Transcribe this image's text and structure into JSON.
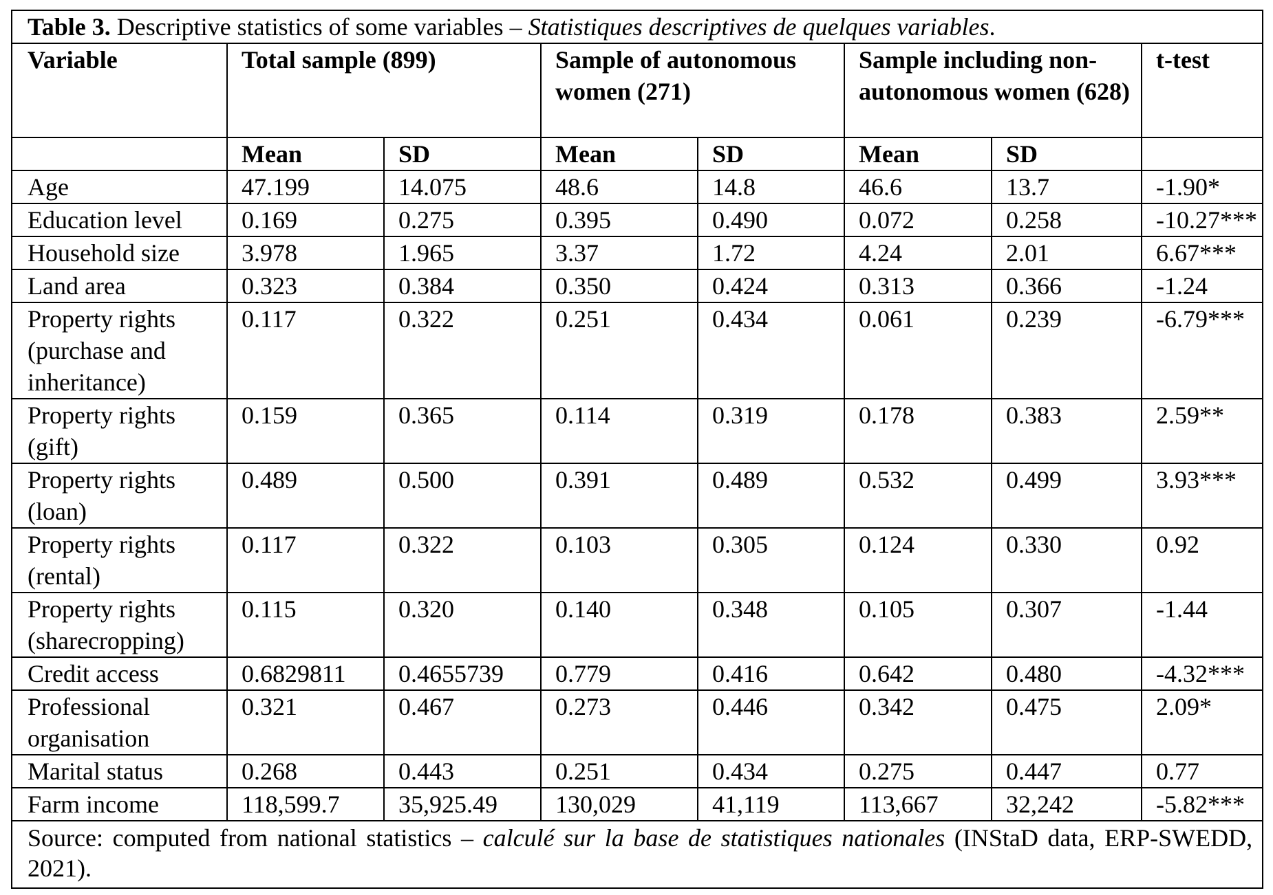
{
  "table": {
    "title_bold": "Table 3.",
    "title_text": " Descriptive statistics of some variables – ",
    "title_italic": "Statistiques descriptives de quelques variables",
    "title_end": ".",
    "group_headers": [
      "Variable",
      "Total sample (899)",
      "Sample of autonomous women (271)",
      "Sample including non-autonomous women (628)",
      "t-test"
    ],
    "sub_headers": [
      "Mean",
      "SD",
      "Mean",
      "SD",
      "Mean",
      "SD"
    ],
    "rows": [
      [
        "Age",
        "47.199",
        "14.075",
        "48.6",
        "14.8",
        "46.6",
        "13.7",
        "-1.90*"
      ],
      [
        "Education level",
        "0.169",
        "0.275",
        "0.395",
        "0.490",
        "0.072",
        "0.258",
        "-10.27***"
      ],
      [
        "Household size",
        "3.978",
        "1.965",
        "3.37",
        "1.72",
        "4.24",
        "2.01",
        "6.67***"
      ],
      [
        "Land area",
        "0.323",
        "0.384",
        "0.350",
        "0.424",
        "0.313",
        "0.366",
        "-1.24"
      ],
      [
        "Property rights (purchase and inheritance)",
        "0.117",
        "0.322",
        "0.251",
        "0.434",
        "0.061",
        "0.239",
        "-6.79***"
      ],
      [
        "Property rights (gift)",
        "0.159",
        "0.365",
        "0.114",
        "0.319",
        "0.178",
        "0.383",
        "2.59**"
      ],
      [
        "Property rights (loan)",
        "0.489",
        "0.500",
        "0.391",
        "0.489",
        "0.532",
        "0.499",
        "3.93***"
      ],
      [
        "Property rights (rental)",
        "0.117",
        "0.322",
        "0.103",
        "0.305",
        "0.124",
        "0.330",
        "0.92"
      ],
      [
        "Property rights (sharecropping)",
        "0.115",
        "0.320",
        "0.140",
        "0.348",
        "0.105",
        "0.307",
        "-1.44"
      ],
      [
        "Credit access",
        "0.6829811",
        "0.4655739",
        "0.779",
        "0.416",
        "0.642",
        "0.480",
        "-4.32***"
      ],
      [
        "Professional organisation",
        "0.321",
        "0.467",
        "0.273",
        "0.446",
        "0.342",
        "0.475",
        "2.09*"
      ],
      [
        "Marital status",
        "0.268",
        "0.443",
        "0.251",
        "0.434",
        "0.275",
        "0.447",
        "0.77"
      ],
      [
        "Farm income",
        "118,599.7",
        "35,925.49",
        "130,029",
        "41,119",
        "113,667",
        "32,242",
        "-5.82***"
      ]
    ],
    "source_text1": "Source: computed from national statistics – ",
    "source_italic": "calculé sur la base de statistiques nationales",
    "source_text2": " (INStaD data, ERP-SWEDD, 2021)."
  }
}
